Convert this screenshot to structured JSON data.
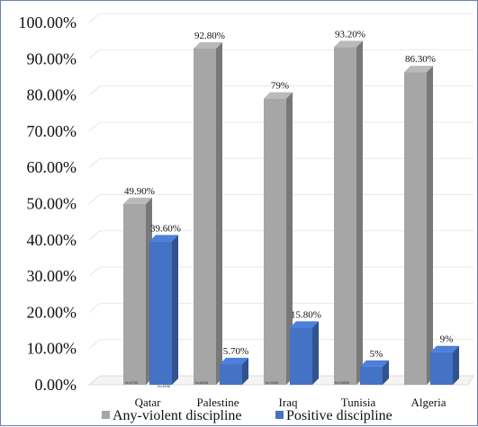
{
  "chart_data": {
    "type": "bar",
    "categories": [
      "Qatar",
      "Palestine",
      "Iraq",
      "Tunisia",
      "Algeria"
    ],
    "series": [
      {
        "name": "Any-violent discipline",
        "values": [
          49.9,
          92.8,
          79,
          93.2,
          86.3
        ],
        "labels": [
          "49.90%",
          "92.80%",
          "79%",
          "93.20%",
          "86.30%"
        ],
        "color": "#a6a6a6"
      },
      {
        "name": "Positive discipline",
        "values": [
          39.6,
          5.7,
          15.8,
          5,
          9
        ],
        "labels": [
          "39.60%",
          "5.70%",
          "15.80%",
          "5%",
          "9%"
        ],
        "color": "#4472c4"
      }
    ],
    "sample_sizes": [
      "N=5750",
      "N=8006",
      "N=7650",
      "N=23829",
      ""
    ],
    "sample_sizes_right": [
      "N=4496",
      "",
      "",
      "",
      ""
    ],
    "yticks": [
      "0.00%",
      "10.00%",
      "20.00%",
      "30.00%",
      "40.00%",
      "50.00%",
      "60.00%",
      "70.00%",
      "80.00%",
      "90.00%",
      "100.00%"
    ],
    "ylim": [
      0,
      100
    ],
    "grid": true,
    "legend_position": "bottom",
    "title": "",
    "xlabel": "",
    "ylabel": ""
  }
}
